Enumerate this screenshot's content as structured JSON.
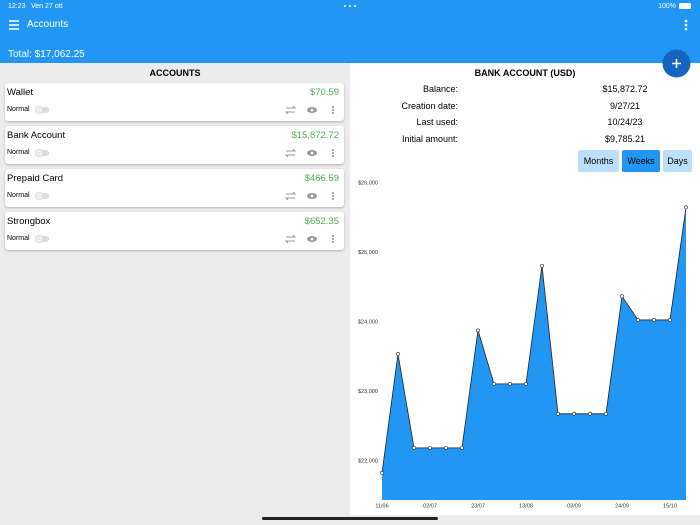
{
  "status_bar": {
    "time": "12:23",
    "date": "Ven 27 ott",
    "battery": "100%"
  },
  "header": {
    "title": "Accounts",
    "total": "Total: $17,062.25"
  },
  "accounts": {
    "heading": "ACCOUNTS",
    "items": [
      {
        "name": "Wallet",
        "amount": "$70.59",
        "type": "Normal"
      },
      {
        "name": "Bank Account",
        "amount": "$15,872.72",
        "type": "Normal"
      },
      {
        "name": "Prepaid Card",
        "amount": "$466.59",
        "type": "Normal"
      },
      {
        "name": "Strongbox",
        "amount": "$652.35",
        "type": "Normal"
      }
    ]
  },
  "detail": {
    "heading": "BANK ACCOUNT (USD)",
    "rows": [
      [
        "Balance:",
        "$15,872.72"
      ],
      [
        "Creation date:",
        "9/27/21"
      ],
      [
        "Last used:",
        "10/24/23"
      ],
      [
        "Initial amount:",
        "$9,785.21"
      ]
    ],
    "periods": [
      "Months",
      "Weeks",
      "Days"
    ]
  },
  "chart_data": {
    "type": "area",
    "categories": [
      "11/06",
      null,
      null,
      "02/07",
      null,
      null,
      "23/07",
      null,
      null,
      "13/08",
      null,
      null,
      "03/09",
      null,
      null,
      "24/09",
      null,
      null,
      "15/10",
      null
    ],
    "values": [
      21830,
      23540,
      22190,
      22190,
      22190,
      22190,
      23880,
      23110,
      23110,
      23110,
      24810,
      22680,
      22680,
      22680,
      22680,
      24370,
      24030,
      24030,
      24030,
      25650
    ],
    "color": "#2196f3",
    "line_color": "#222222",
    "ylim": [
      21440,
      26000
    ],
    "yticks": [
      {
        "value": 22000,
        "label": "$22,000"
      },
      {
        "value": 23000,
        "label": "$23,000"
      },
      {
        "value": 24000,
        "label": "$24,000"
      },
      {
        "value": 25000,
        "label": "$25,000"
      },
      {
        "value": 26000,
        "label": "$26,000"
      }
    ]
  }
}
